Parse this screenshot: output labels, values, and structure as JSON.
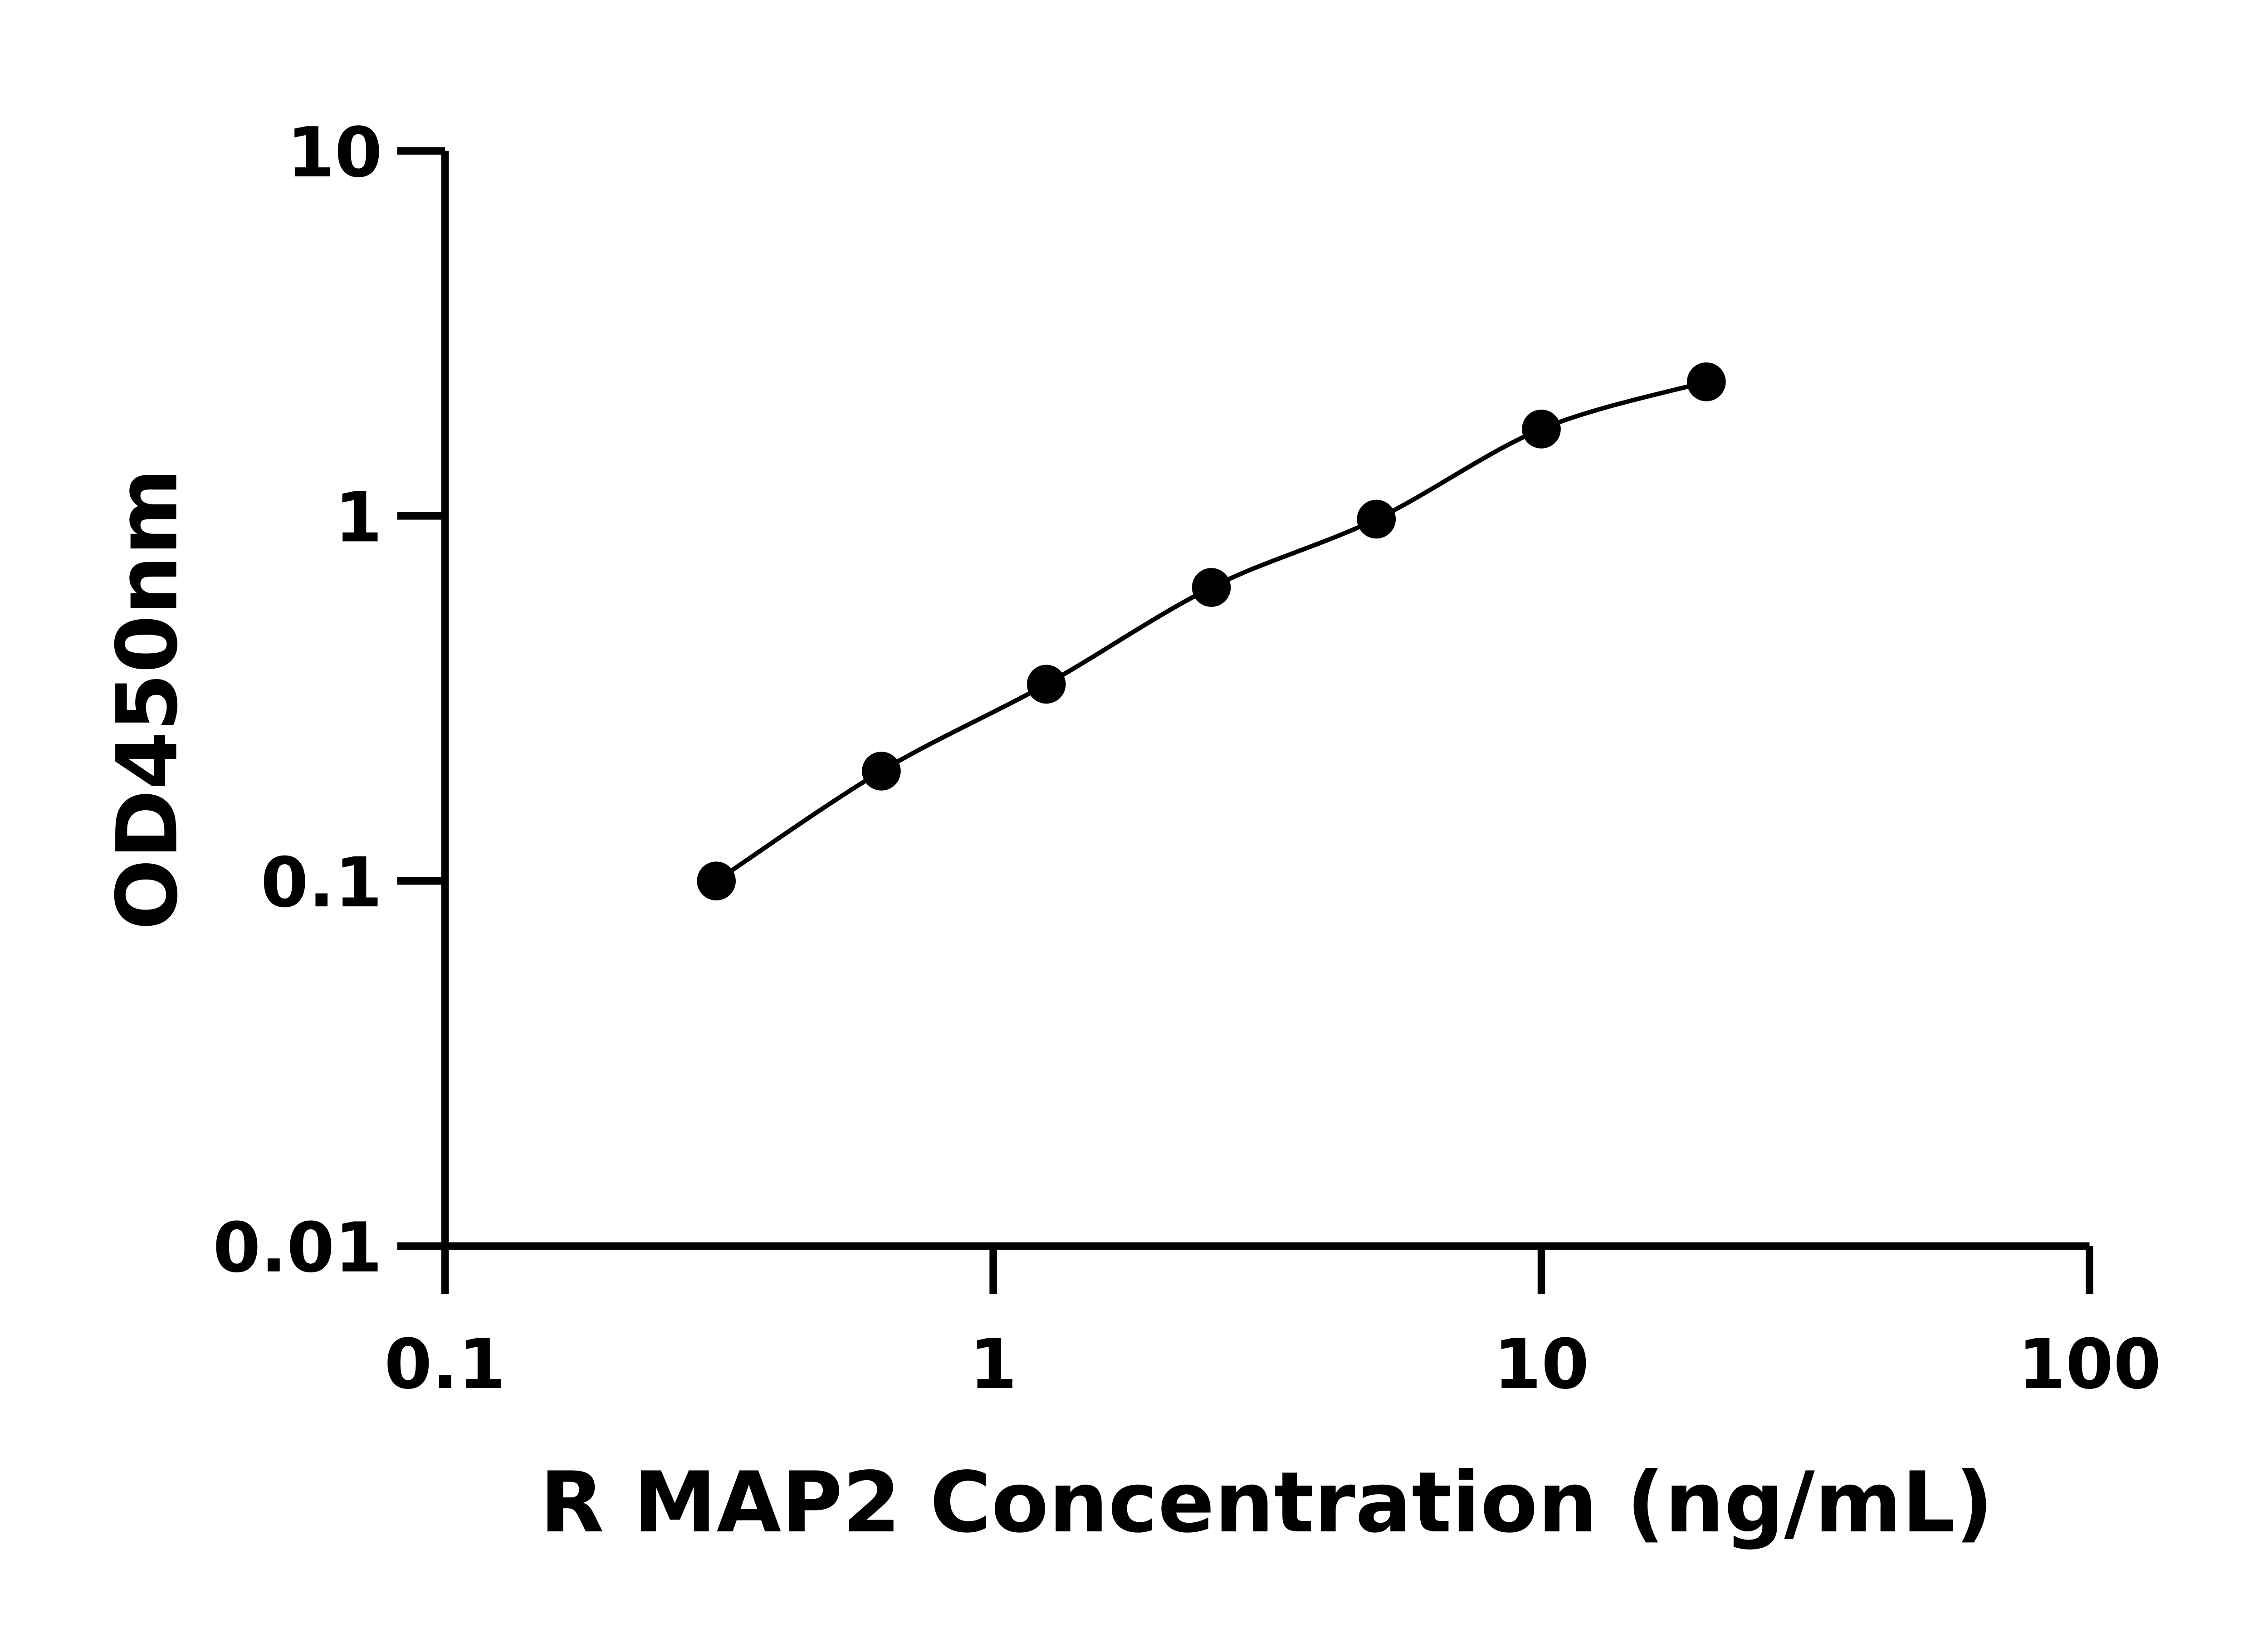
{
  "chart_data": {
    "type": "scatter",
    "title": "",
    "xlabel": "R MAP2 Concentration (ng/mL)",
    "ylabel": "OD450nm",
    "xscale": "log",
    "yscale": "log",
    "xlim": [
      0.1,
      100
    ],
    "ylim": [
      0.01,
      10
    ],
    "xticks": [
      "0.1",
      "1",
      "10",
      "100"
    ],
    "yticks": [
      "0.01",
      "0.1",
      "1",
      "10"
    ],
    "grid": false,
    "fit_line": true,
    "x": [
      0.3125,
      0.625,
      1.25,
      2.5,
      5,
      10,
      20
    ],
    "y": [
      0.1,
      0.2,
      0.346,
      0.637,
      0.98,
      1.73,
      2.33
    ],
    "marker_color": "#000000"
  }
}
